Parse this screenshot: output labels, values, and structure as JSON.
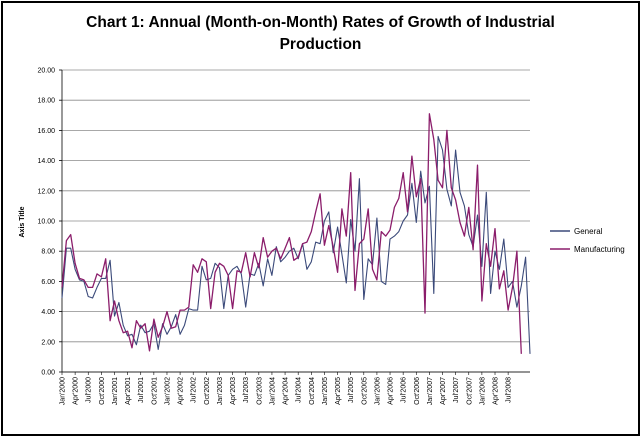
{
  "chart_data": {
    "type": "line",
    "title_line1": "Chart 1: Annual (Month-on-Month) Rates of Growth of Industrial",
    "title_line2": "Production",
    "ylabel": "Axis Title",
    "ylim": [
      0,
      20
    ],
    "ytick_labels": [
      "0.00",
      "2.00",
      "4.00",
      "6.00",
      "8.00",
      "10.00",
      "12.00",
      "14.00",
      "16.00",
      "18.00",
      "20.00"
    ],
    "grid": "horizontal",
    "legend_position": "right",
    "x_tick_labels": [
      "Jan'2000",
      "Apr'2000",
      "Jul'2000",
      "Oct'2000",
      "Jan'2001",
      "Apr'2001",
      "Jul'2001",
      "Oct'2001",
      "Jan'2002",
      "Apr'2002",
      "Jul'2002",
      "Oct'2002",
      "Jan'2003",
      "Apr'2003",
      "Jul'2003",
      "Oct'2003",
      "Jan'2004",
      "Apr'2004",
      "Jul'2004",
      "Oct'2004",
      "Jan'2005",
      "Apr'2005",
      "Jul'2005",
      "Oct'2005",
      "Jan'2006",
      "Apr'2006",
      "Jul'2006",
      "Oct'2006",
      "Jan'2007",
      "Apr'2007",
      "Jul'2007",
      "Oct'2007",
      "Jan'2008",
      "Apr'2008",
      "Jul'2008"
    ],
    "series": [
      {
        "name": "General",
        "color": "#3b4a7a",
        "values": [
          4.9,
          8.2,
          8.2,
          6.8,
          6.1,
          6.0,
          5.0,
          4.9,
          5.6,
          6.2,
          6.2,
          7.4,
          3.7,
          4.6,
          3.1,
          2.4,
          2.5,
          1.8,
          3.1,
          2.6,
          2.7,
          3.2,
          1.5,
          3.2,
          2.5,
          3.0,
          3.8,
          2.5,
          3.1,
          4.2,
          4.1,
          4.1,
          7.0,
          6.1,
          6.2,
          7.2,
          6.9,
          4.2,
          6.4,
          6.8,
          7.0,
          6.5,
          4.3,
          6.5,
          6.4,
          7.2,
          5.7,
          7.5,
          6.4,
          8.3,
          7.3,
          7.6,
          8.0,
          8.2,
          7.5,
          8.5,
          6.8,
          7.3,
          8.6,
          8.5,
          10.0,
          10.6,
          7.9,
          9.6,
          7.8,
          5.9,
          10.1,
          8.0,
          12.8,
          4.8,
          7.5,
          7.1,
          10.2,
          6.0,
          5.8,
          8.8,
          9.0,
          9.3,
          10.0,
          10.4,
          12.5,
          9.9,
          13.3,
          11.2,
          12.3,
          5.2,
          15.6,
          14.7,
          12.1,
          11.0,
          14.7,
          11.9,
          11.0,
          9.1,
          8.3,
          10.4,
          7.0,
          11.9,
          5.2,
          8.0,
          6.8,
          8.8,
          5.6,
          6.0,
          4.3,
          5.7,
          7.6,
          1.2
        ]
      },
      {
        "name": "Manufacturing",
        "color": "#8b1d6b",
        "values": [
          5.6,
          8.7,
          9.1,
          7.2,
          6.2,
          6.1,
          5.6,
          5.6,
          6.5,
          6.3,
          7.5,
          3.4,
          4.7,
          3.4,
          2.6,
          2.7,
          1.6,
          3.4,
          2.9,
          3.2,
          1.4,
          3.5,
          2.3,
          3.0,
          4.0,
          2.9,
          3.0,
          4.1,
          4.1,
          4.3,
          7.1,
          6.6,
          7.5,
          7.3,
          4.2,
          6.6,
          7.2,
          7.0,
          6.4,
          4.2,
          6.7,
          6.6,
          7.9,
          6.3,
          7.9,
          6.9,
          8.9,
          7.6,
          8.0,
          8.2,
          7.5,
          8.2,
          8.9,
          7.4,
          7.6,
          8.5,
          8.6,
          9.3,
          10.6,
          11.8,
          8.4,
          9.7,
          8.3,
          6.6,
          10.8,
          9.0,
          13.2,
          5.4,
          8.5,
          8.8,
          10.8,
          6.8,
          6.1,
          9.3,
          9.0,
          9.4,
          10.9,
          11.5,
          13.2,
          10.6,
          14.3,
          11.6,
          12.8,
          3.9,
          17.1,
          15.4,
          12.7,
          12.2,
          16.0,
          12.2,
          11.4,
          9.9,
          9.0,
          10.9,
          8.1,
          13.7,
          4.7,
          8.5,
          7.0,
          9.5,
          5.5,
          6.7,
          4.1,
          5.6,
          8.0,
          1.2
        ]
      }
    ]
  }
}
